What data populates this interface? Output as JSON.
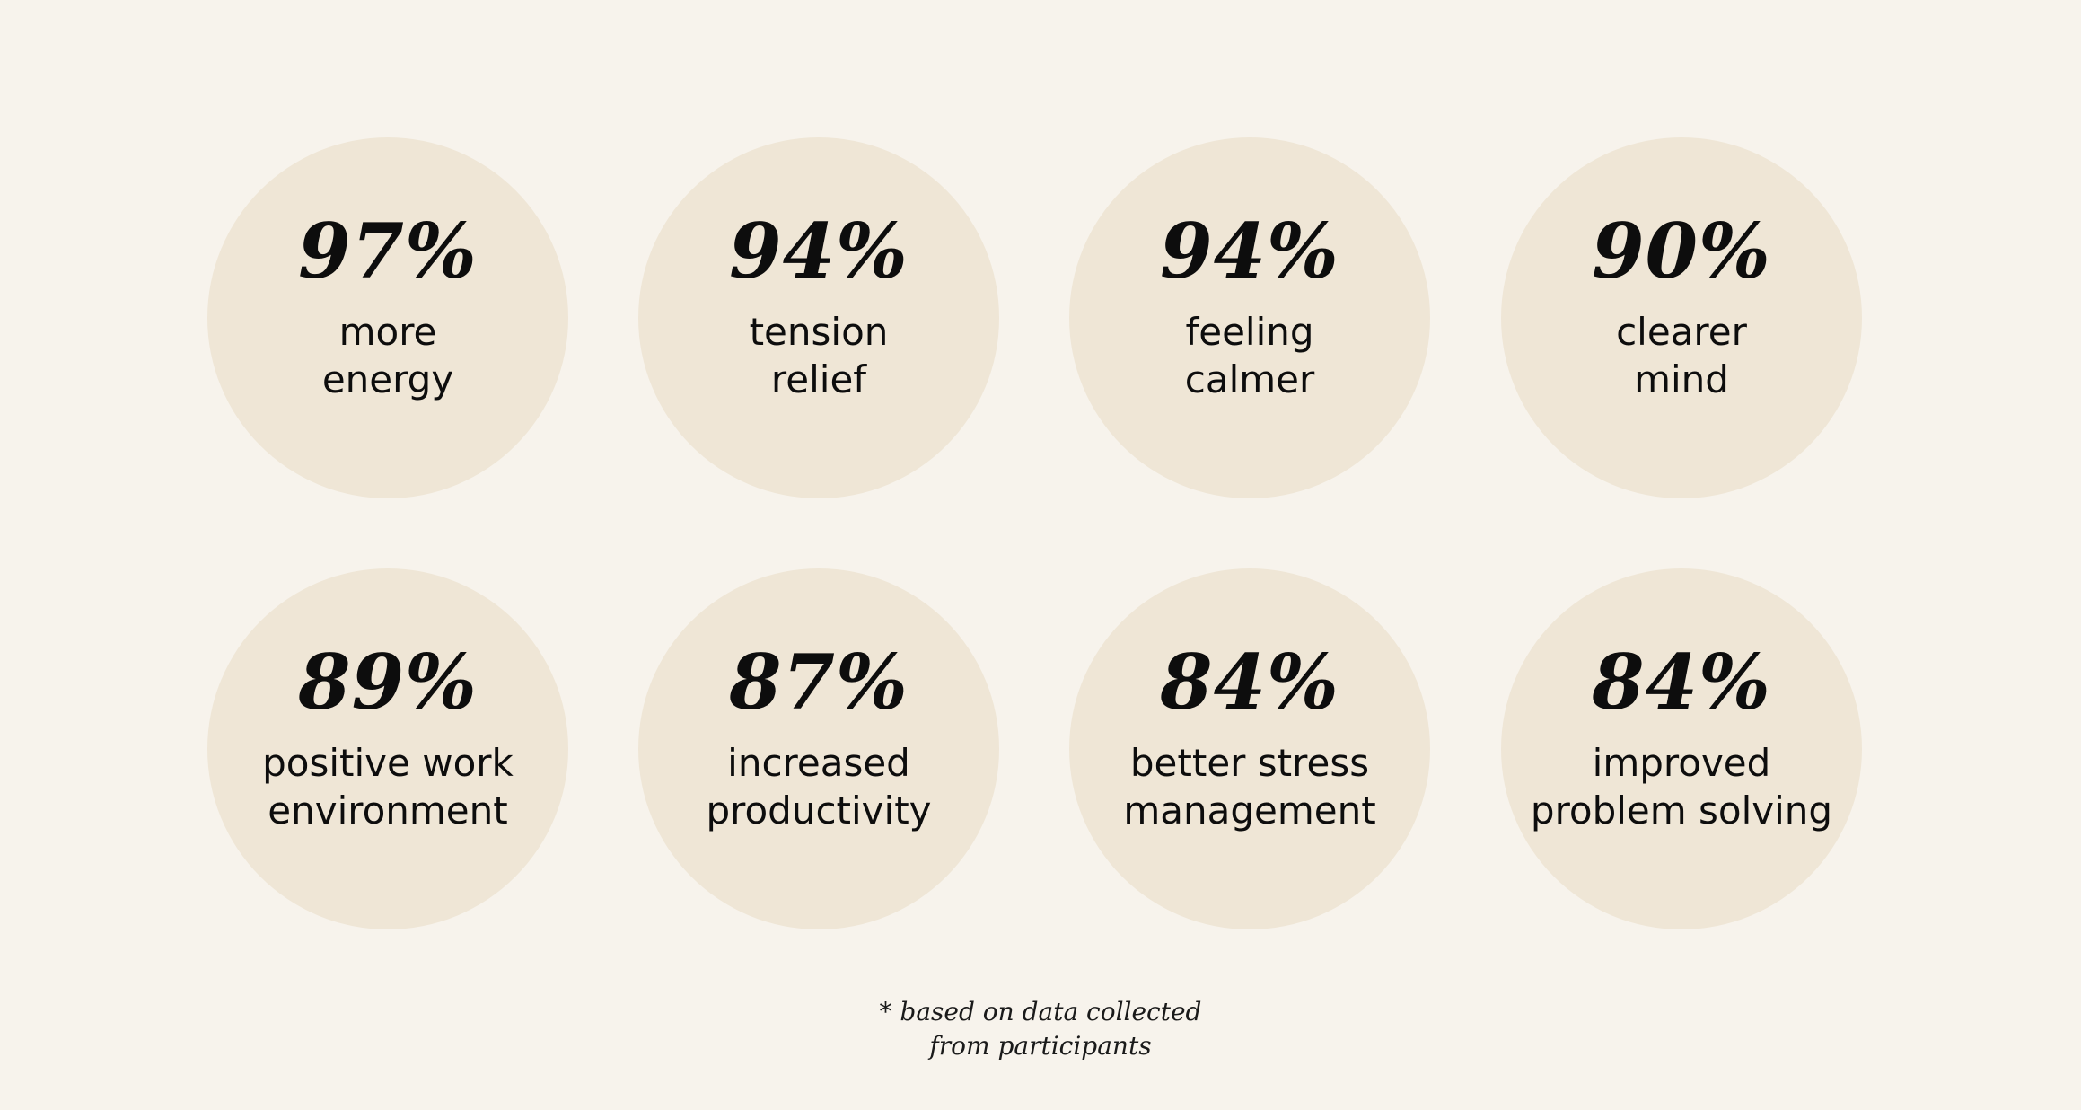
{
  "stats": [
    {
      "value": "97%",
      "label_lines": [
        "more",
        "energy"
      ]
    },
    {
      "value": "94%",
      "label_lines": [
        "tension",
        "relief"
      ]
    },
    {
      "value": "94%",
      "label_lines": [
        "feeling",
        "calmer"
      ]
    },
    {
      "value": "90%",
      "label_lines": [
        "clearer",
        "mind"
      ]
    },
    {
      "value": "89%",
      "label_lines": [
        "positive work",
        "environment"
      ]
    },
    {
      "value": "87%",
      "label_lines": [
        "increased",
        "productivity"
      ]
    },
    {
      "value": "84%",
      "label_lines": [
        "better stress",
        "management"
      ]
    },
    {
      "value": "84%",
      "label_lines": [
        "improved",
        "problem solving"
      ]
    }
  ],
  "footnote": {
    "lines": [
      "* based on data collected",
      "from participants"
    ]
  },
  "colors": {
    "background": "#f7f3ec",
    "circle": "#efe6d6",
    "text": "#0d0d0d"
  }
}
